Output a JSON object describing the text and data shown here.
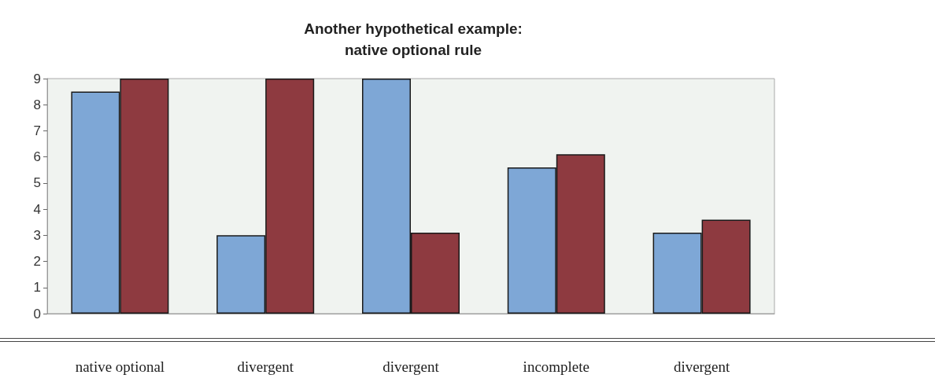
{
  "chart_data": {
    "type": "bar",
    "title": "Another hypothetical example:\nnative optional rule",
    "categories": [
      "native optional",
      "divergent",
      "divergent",
      "incomplete",
      "divergent"
    ],
    "series": [
      {
        "color": "#7ea7d6",
        "values": [
          8.5,
          3,
          9,
          5.6,
          3.1
        ]
      },
      {
        "color": "#8e3a40",
        "values": [
          9,
          9,
          3.1,
          6.1,
          3.6
        ]
      }
    ],
    "ylim": [
      0,
      9
    ],
    "yticks": [
      0,
      1,
      2,
      3,
      4,
      5,
      6,
      7,
      8,
      9
    ],
    "grid": false
  }
}
